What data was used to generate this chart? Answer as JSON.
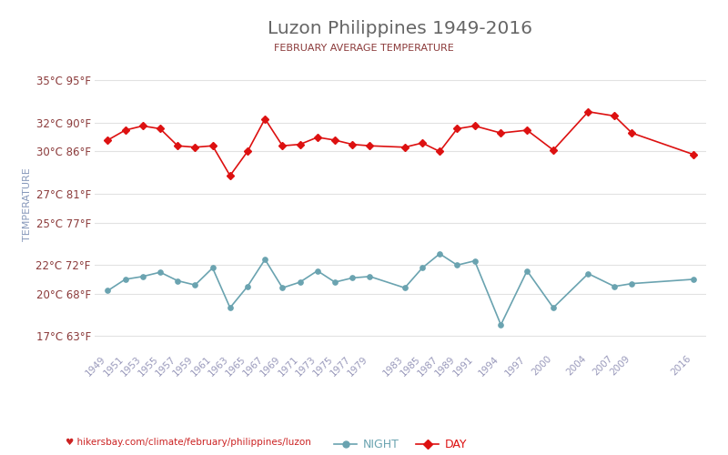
{
  "title": "Luzon Philippines 1949-2016",
  "subtitle": "FEBRUARY AVERAGE TEMPERATURE",
  "ylabel": "TEMPERATURE",
  "footer": "hikersbay.com/climate/february/philippines/luzon",
  "years": [
    1949,
    1951,
    1953,
    1955,
    1957,
    1959,
    1961,
    1963,
    1965,
    1967,
    1969,
    1971,
    1973,
    1975,
    1977,
    1979,
    1983,
    1985,
    1987,
    1989,
    1991,
    1994,
    1997,
    2000,
    2004,
    2007,
    2009,
    2016
  ],
  "day_vals": [
    30.8,
    31.5,
    31.8,
    31.6,
    30.4,
    30.3,
    30.4,
    28.3,
    30.0,
    32.3,
    30.4,
    30.5,
    31.0,
    30.8,
    30.5,
    30.4,
    30.3,
    30.6,
    30.0,
    31.6,
    31.8,
    31.3,
    31.5,
    30.1,
    32.8,
    32.5,
    31.3,
    29.8
  ],
  "night_vals": [
    20.2,
    21.0,
    21.2,
    21.5,
    20.9,
    20.6,
    21.8,
    19.0,
    20.5,
    22.4,
    20.4,
    20.8,
    21.6,
    20.8,
    21.1,
    21.2,
    20.4,
    21.8,
    22.8,
    22.0,
    22.3,
    17.8,
    21.6,
    19.0,
    21.4,
    20.5,
    20.7,
    21.0
  ],
  "bg_color": "#ffffff",
  "day_color": "#dd1111",
  "night_color": "#6aa3b0",
  "title_color": "#666666",
  "subtitle_color": "#8b3a3a",
  "ylabel_color": "#8899bb",
  "tick_color_x": "#9999bb",
  "tick_color_y": "#8b3a3a",
  "grid_color": "#e2e2e2",
  "footer_color": "#cc2222",
  "yticks_c": [
    17,
    20,
    22,
    25,
    27,
    30,
    32,
    35
  ],
  "yticks_f": [
    63,
    68,
    72,
    77,
    81,
    86,
    90,
    95
  ],
  "ylim": [
    16.0,
    36.5
  ],
  "xlim": [
    1947.5,
    2017.5
  ],
  "x_ticks": [
    1949,
    1951,
    1953,
    1955,
    1957,
    1959,
    1961,
    1963,
    1965,
    1967,
    1969,
    1971,
    1973,
    1975,
    1977,
    1979,
    1983,
    1985,
    1987,
    1989,
    1991,
    1994,
    1997,
    2000,
    2004,
    2007,
    2009,
    2016
  ]
}
